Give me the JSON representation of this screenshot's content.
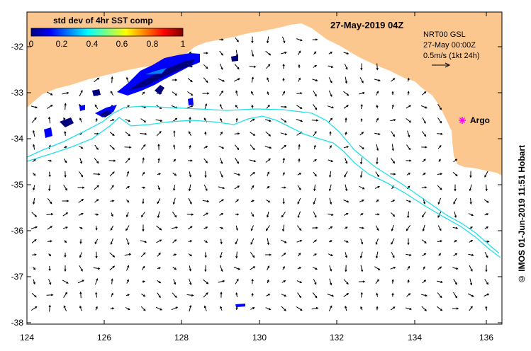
{
  "map": {
    "title_date": "27-May-2019 04Z",
    "colorbar": {
      "title": "std dev of 4hr SST comp",
      "ticks": [
        "0",
        "0.2",
        "0.4",
        "0.6",
        "0.8",
        "1"
      ],
      "colors": [
        "#00007f",
        "#0000ff",
        "#007fff",
        "#00ffff",
        "#7fff7f",
        "#ffff00",
        "#ff7f00",
        "#ff0000",
        "#7f0000"
      ]
    },
    "vector_info": {
      "line1": "NRT00 GSL",
      "line2": "27-May 00:00Z",
      "line3": "0.5m/s (1kt 24h)"
    },
    "argo_label": "Argo",
    "credit": "© IMOS 01-Jun-2019 11:51 Hobart",
    "x_ticks": [
      "124",
      "126",
      "128",
      "130",
      "132",
      "134",
      "136"
    ],
    "y_ticks": [
      "-32",
      "-33",
      "-34",
      "-35",
      "-36",
      "-37",
      "-38"
    ],
    "colors": {
      "land": "#fcc68f",
      "contour": "#22e0e8",
      "argo": "#ff00ff",
      "sst_dark": "#00007f",
      "sst_mid": "#0000ff"
    }
  }
}
